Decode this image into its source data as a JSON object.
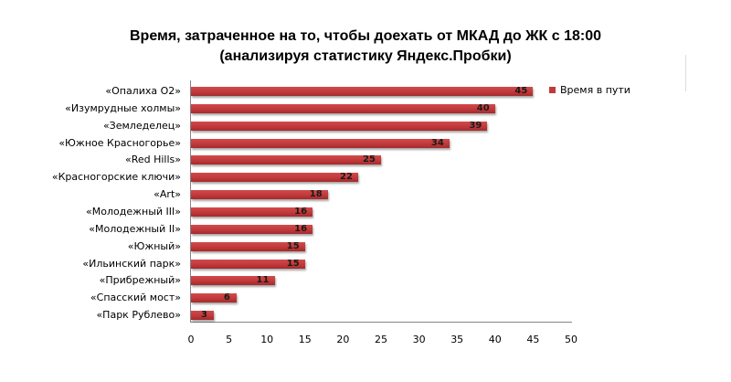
{
  "title": {
    "line1": "Время, затраченное на то, чтобы доехать от МКАД до ЖК с 18:00",
    "line2": "(анализируя статистику Яндекс.Пробки)"
  },
  "legend": {
    "label": "Время в пути",
    "color": "#c0393b"
  },
  "chart_data": {
    "type": "bar",
    "orientation": "horizontal",
    "title": "Время, затраченное на то, чтобы доехать от МКАД до ЖК с 18:00 (анализируя статистику Яндекс.Пробки)",
    "categories": [
      "«Опалиха О2»",
      "«Изумрудные холмы»",
      "«Земледелец»",
      "«Южное  Красногорье»",
      "«Red Hills»",
      "«Красногорские ключи»",
      "«Art»",
      "«Молодежный  III»",
      "«Молодежный  II»",
      "«Южный»",
      "«Ильинский  парк»",
      "«Прибрежный»",
      "«Спасский мост»",
      "«Парк Рублево»"
    ],
    "series": [
      {
        "name": "Время в пути",
        "values": [
          45,
          40,
          39,
          34,
          25,
          22,
          18,
          16,
          16,
          15,
          15,
          11,
          6,
          3
        ]
      }
    ],
    "xlim": [
      0,
      50
    ],
    "xticks": [
      "0",
      "5",
      "10",
      "15",
      "20",
      "25",
      "30",
      "35",
      "40",
      "45",
      "50"
    ],
    "xlabel": "",
    "ylabel": "",
    "legend_position": "right",
    "grid": false,
    "data_labels": true
  }
}
